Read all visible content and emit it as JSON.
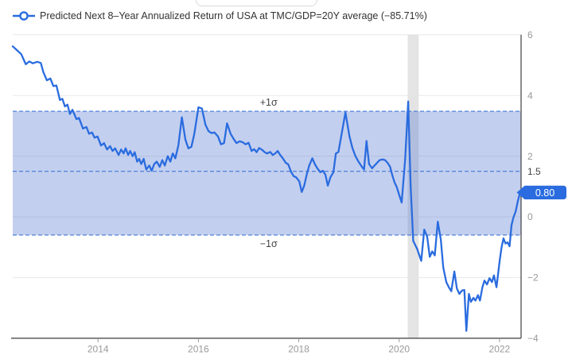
{
  "legend": {
    "label": "Predicted Next 8–Year Annualized Return of USA at TMC/GDP=20Y average (−85.71%)",
    "marker": "line-with-hollow-circle"
  },
  "colors": {
    "line": "#2a6cdf",
    "band_fill": "rgba(82,118,210,0.35)",
    "band_edge": "#4078d8",
    "grid": "#e8e8e8",
    "axis": "#4d4d4d",
    "tick_label": "#999999",
    "special_tick_label": "#444444",
    "sigma_label": "#444444",
    "badge_bg": "#2a6cdf",
    "badge_text": "#ffffff",
    "recession_band": "#e4e4e4",
    "legend_text": "#333333"
  },
  "chart_data": {
    "type": "line",
    "title": "Predicted Next 8–Year Annualized Return of USA at TMC/GDP=20Y average (−85.71%)",
    "xlabel": "",
    "ylabel": "",
    "grid": true,
    "legend_position": "top-left",
    "xlim": [
      2012.3,
      2022.43
    ],
    "ylim": [
      -4,
      6
    ],
    "x_ticks": [
      {
        "v": 2014,
        "label": "2014"
      },
      {
        "v": 2016,
        "label": "2016"
      },
      {
        "v": 2018,
        "label": "2018"
      },
      {
        "v": 2020,
        "label": "2020"
      },
      {
        "v": 2022,
        "label": "2022"
      }
    ],
    "y_ticks": [
      {
        "v": 6,
        "label": "6"
      },
      {
        "v": 4,
        "label": "4"
      },
      {
        "v": 2,
        "label": "2"
      },
      {
        "v": 0,
        "label": "0"
      },
      {
        "v": -2,
        "label": "−2"
      },
      {
        "v": -4,
        "label": "−4"
      }
    ],
    "y_extra_label": {
      "v": 1.5,
      "label": "1.5"
    },
    "gridline_values": [
      6,
      4,
      2,
      0,
      -2
    ],
    "sigma_band": {
      "upper": 3.48,
      "mean": 1.5,
      "lower": -0.6,
      "upper_label": "+1σ",
      "lower_label": "−1σ",
      "label_x": 2017.4
    },
    "recession_band": {
      "from": 2020.17,
      "to": 2020.39
    },
    "last_value": {
      "value": 0.8,
      "label": "0.80"
    },
    "series": [
      {
        "name": "Predicted Next 8–Year Annualized Return of USA at TMC/GDP=20Y average (−85.71%)",
        "points": [
          [
            2012.3,
            5.62
          ],
          [
            2012.38,
            5.5
          ],
          [
            2012.47,
            5.36
          ],
          [
            2012.56,
            5.03
          ],
          [
            2012.63,
            5.12
          ],
          [
            2012.7,
            5.06
          ],
          [
            2012.79,
            5.11
          ],
          [
            2012.86,
            5.07
          ],
          [
            2012.91,
            4.77
          ],
          [
            2012.98,
            4.5
          ],
          [
            2013.05,
            4.56
          ],
          [
            2013.11,
            4.31
          ],
          [
            2013.17,
            4.33
          ],
          [
            2013.24,
            3.85
          ],
          [
            2013.29,
            3.89
          ],
          [
            2013.34,
            3.64
          ],
          [
            2013.39,
            3.7
          ],
          [
            2013.44,
            3.39
          ],
          [
            2013.49,
            3.53
          ],
          [
            2013.57,
            3.22
          ],
          [
            2013.62,
            3.26
          ],
          [
            2013.7,
            2.91
          ],
          [
            2013.77,
            2.96
          ],
          [
            2013.82,
            2.74
          ],
          [
            2013.88,
            2.78
          ],
          [
            2013.93,
            2.61
          ],
          [
            2013.99,
            2.65
          ],
          [
            2014.06,
            2.35
          ],
          [
            2014.12,
            2.43
          ],
          [
            2014.18,
            2.22
          ],
          [
            2014.24,
            2.33
          ],
          [
            2014.29,
            2.17
          ],
          [
            2014.34,
            2.26
          ],
          [
            2014.41,
            2.04
          ],
          [
            2014.46,
            2.22
          ],
          [
            2014.51,
            2.09
          ],
          [
            2014.55,
            2.26
          ],
          [
            2014.6,
            2.04
          ],
          [
            2014.64,
            2.17
          ],
          [
            2014.69,
            2.0
          ],
          [
            2014.73,
            2.13
          ],
          [
            2014.78,
            1.82
          ],
          [
            2014.82,
            1.91
          ],
          [
            2014.86,
            1.74
          ],
          [
            2014.91,
            1.91
          ],
          [
            2014.96,
            1.56
          ],
          [
            2015.02,
            1.69
          ],
          [
            2015.07,
            1.52
          ],
          [
            2015.12,
            1.74
          ],
          [
            2015.17,
            1.82
          ],
          [
            2015.23,
            1.65
          ],
          [
            2015.28,
            1.87
          ],
          [
            2015.33,
            1.69
          ],
          [
            2015.39,
            2.0
          ],
          [
            2015.44,
            1.82
          ],
          [
            2015.49,
            2.09
          ],
          [
            2015.54,
            1.93
          ],
          [
            2015.6,
            2.35
          ],
          [
            2015.67,
            3.28
          ],
          [
            2015.74,
            2.55
          ],
          [
            2015.8,
            2.26
          ],
          [
            2015.86,
            2.31
          ],
          [
            2015.92,
            2.74
          ],
          [
            2016.0,
            3.61
          ],
          [
            2016.07,
            3.57
          ],
          [
            2016.14,
            3.04
          ],
          [
            2016.2,
            2.83
          ],
          [
            2016.26,
            2.76
          ],
          [
            2016.32,
            2.78
          ],
          [
            2016.39,
            2.65
          ],
          [
            2016.45,
            2.39
          ],
          [
            2016.51,
            2.43
          ],
          [
            2016.57,
            3.08
          ],
          [
            2016.64,
            2.74
          ],
          [
            2016.7,
            2.57
          ],
          [
            2016.76,
            2.43
          ],
          [
            2016.82,
            2.49
          ],
          [
            2016.88,
            2.46
          ],
          [
            2016.94,
            2.39
          ],
          [
            2017.0,
            2.44
          ],
          [
            2017.06,
            2.17
          ],
          [
            2017.11,
            2.23
          ],
          [
            2017.16,
            2.13
          ],
          [
            2017.21,
            2.27
          ],
          [
            2017.27,
            2.21
          ],
          [
            2017.32,
            2.13
          ],
          [
            2017.37,
            2.09
          ],
          [
            2017.43,
            2.14
          ],
          [
            2017.48,
            2.04
          ],
          [
            2017.53,
            2.09
          ],
          [
            2017.58,
            2.17
          ],
          [
            2017.63,
            2.04
          ],
          [
            2017.69,
            1.91
          ],
          [
            2017.74,
            1.78
          ],
          [
            2017.79,
            1.73
          ],
          [
            2017.85,
            1.47
          ],
          [
            2017.9,
            1.34
          ],
          [
            2017.95,
            1.3
          ],
          [
            2018.01,
            1.17
          ],
          [
            2018.06,
            0.82
          ],
          [
            2018.11,
            1.04
          ],
          [
            2018.16,
            1.4
          ],
          [
            2018.21,
            1.7
          ],
          [
            2018.27,
            1.93
          ],
          [
            2018.32,
            1.74
          ],
          [
            2018.37,
            1.6
          ],
          [
            2018.43,
            1.47
          ],
          [
            2018.48,
            1.52
          ],
          [
            2018.53,
            1.39
          ],
          [
            2018.58,
            1.03
          ],
          [
            2018.63,
            1.3
          ],
          [
            2018.69,
            1.47
          ],
          [
            2018.74,
            2.09
          ],
          [
            2018.79,
            2.14
          ],
          [
            2018.85,
            2.7
          ],
          [
            2018.93,
            3.44
          ],
          [
            2019.01,
            2.65
          ],
          [
            2019.07,
            2.26
          ],
          [
            2019.13,
            2.0
          ],
          [
            2019.19,
            1.82
          ],
          [
            2019.24,
            1.69
          ],
          [
            2019.3,
            1.56
          ],
          [
            2019.35,
            2.5
          ],
          [
            2019.4,
            1.74
          ],
          [
            2019.46,
            1.6
          ],
          [
            2019.51,
            1.69
          ],
          [
            2019.56,
            1.78
          ],
          [
            2019.61,
            1.87
          ],
          [
            2019.67,
            1.89
          ],
          [
            2019.72,
            1.87
          ],
          [
            2019.77,
            1.78
          ],
          [
            2019.82,
            1.65
          ],
          [
            2019.86,
            1.39
          ],
          [
            2019.91,
            1.13
          ],
          [
            2019.95,
            0.99
          ],
          [
            2020.0,
            0.73
          ],
          [
            2020.05,
            0.47
          ],
          [
            2020.12,
            1.9
          ],
          [
            2020.18,
            3.8
          ],
          [
            2020.23,
            1.0
          ],
          [
            2020.28,
            -0.79
          ],
          [
            2020.36,
            -1.06
          ],
          [
            2020.44,
            -1.45
          ],
          [
            2020.5,
            -0.42
          ],
          [
            2020.56,
            -0.66
          ],
          [
            2020.61,
            -1.32
          ],
          [
            2020.66,
            -1.14
          ],
          [
            2020.71,
            -1.27
          ],
          [
            2020.77,
            -0.16
          ],
          [
            2020.83,
            -0.75
          ],
          [
            2020.88,
            -1.67
          ],
          [
            2020.94,
            -2.15
          ],
          [
            2020.99,
            -2.32
          ],
          [
            2021.04,
            -2.45
          ],
          [
            2021.1,
            -1.8
          ],
          [
            2021.15,
            -2.36
          ],
          [
            2021.2,
            -2.54
          ],
          [
            2021.25,
            -2.43
          ],
          [
            2021.3,
            -2.41
          ],
          [
            2021.34,
            -3.76
          ],
          [
            2021.39,
            -2.54
          ],
          [
            2021.43,
            -2.8
          ],
          [
            2021.48,
            -2.67
          ],
          [
            2021.52,
            -2.76
          ],
          [
            2021.57,
            -2.58
          ],
          [
            2021.61,
            -2.76
          ],
          [
            2021.66,
            -2.32
          ],
          [
            2021.7,
            -2.1
          ],
          [
            2021.75,
            -2.23
          ],
          [
            2021.8,
            -2.02
          ],
          [
            2021.85,
            -2.15
          ],
          [
            2021.89,
            -1.93
          ],
          [
            2021.94,
            -2.32
          ],
          [
            2022.0,
            -1.49
          ],
          [
            2022.04,
            -1.01
          ],
          [
            2022.08,
            -0.71
          ],
          [
            2022.12,
            -0.88
          ],
          [
            2022.16,
            -0.84
          ],
          [
            2022.2,
            -0.97
          ],
          [
            2022.24,
            -0.27
          ],
          [
            2022.28,
            -0.01
          ],
          [
            2022.32,
            0.17
          ],
          [
            2022.37,
            0.55
          ],
          [
            2022.41,
            0.8
          ]
        ]
      }
    ]
  }
}
